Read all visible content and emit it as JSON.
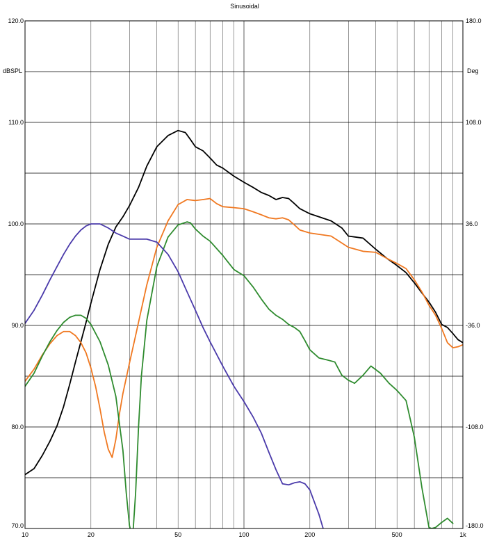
{
  "chart_data": {
    "type": "line",
    "title": "Sinusoidal",
    "xscale": "log",
    "xlim": [
      10,
      1000
    ],
    "ylim": [
      70,
      120
    ],
    "y2lim": [
      -180,
      180
    ],
    "ylabel": "dBSPL",
    "y2label": "Deg",
    "grid": true,
    "x_ticks": [
      {
        "value": 10,
        "label": "10"
      },
      {
        "value": 20,
        "label": "20"
      },
      {
        "value": 50,
        "label": "50"
      },
      {
        "value": 100,
        "label": "100"
      },
      {
        "value": 200,
        "label": "200"
      },
      {
        "value": 500,
        "label": "500"
      },
      {
        "value": 1000,
        "label": "1k"
      }
    ],
    "y_ticks": [
      {
        "value": 70,
        "label": "70.0"
      },
      {
        "value": 80,
        "label": "80.0"
      },
      {
        "value": 90,
        "label": "90.0"
      },
      {
        "value": 100,
        "label": "100.0"
      },
      {
        "value": 110,
        "label": "110.0"
      },
      {
        "value": 120,
        "label": "120.0"
      }
    ],
    "y2_ticks": [
      {
        "value": -180,
        "label": "-180.0"
      },
      {
        "value": -108,
        "label": "-108.0"
      },
      {
        "value": -36,
        "label": "-36.0"
      },
      {
        "value": 36,
        "label": "36.0"
      },
      {
        "value": 108,
        "label": "108.0"
      },
      {
        "value": 180,
        "label": "180.0"
      }
    ],
    "series": [
      {
        "color": "#000000",
        "x": [
          10,
          11,
          12,
          13,
          14,
          15,
          16,
          17,
          18,
          19,
          20,
          22,
          24,
          26,
          28,
          30,
          33,
          36,
          40,
          45,
          50,
          54,
          57,
          60,
          65,
          70,
          75,
          80,
          90,
          100,
          110,
          120,
          130,
          140,
          150,
          160,
          170,
          180,
          200,
          220,
          250,
          280,
          300,
          350,
          400,
          450,
          500,
          550,
          600,
          650,
          700,
          750,
          800,
          850,
          900,
          950,
          1000
        ],
        "y": [
          75.3,
          75.9,
          77.2,
          78.6,
          80.1,
          82.0,
          84.2,
          86.4,
          88.4,
          90.3,
          92.2,
          95.5,
          98.0,
          99.7,
          100.7,
          101.8,
          103.6,
          105.7,
          107.6,
          108.7,
          109.2,
          109.0,
          108.3,
          107.6,
          107.2,
          106.5,
          105.8,
          105.5,
          104.7,
          104.1,
          103.6,
          103.1,
          102.8,
          102.4,
          102.6,
          102.5,
          102.0,
          101.5,
          101.0,
          100.7,
          100.3,
          99.6,
          98.8,
          98.6,
          97.5,
          96.6,
          95.9,
          95.2,
          94.2,
          93.2,
          92.3,
          91.3,
          90.1,
          89.8,
          89.2,
          88.6,
          88.3
        ]
      },
      {
        "color": "#f07820",
        "x": [
          10,
          11,
          12,
          13,
          14,
          15,
          16,
          17,
          18,
          19,
          20,
          21,
          22,
          23,
          24,
          25,
          26,
          27,
          28,
          30,
          32,
          34,
          36,
          40,
          45,
          50,
          55,
          60,
          65,
          70,
          75,
          80,
          90,
          100,
          110,
          120,
          130,
          140,
          150,
          160,
          170,
          180,
          200,
          250,
          300,
          350,
          400,
          450,
          500,
          550,
          600,
          650,
          700,
          750,
          800,
          850,
          900,
          950,
          1000
        ],
        "y": [
          84.5,
          85.7,
          87.1,
          88.2,
          89.0,
          89.4,
          89.4,
          89.0,
          88.3,
          87.3,
          85.8,
          84.0,
          81.8,
          79.5,
          77.8,
          77.0,
          78.8,
          81.3,
          83.3,
          86.3,
          89.0,
          91.6,
          94.0,
          97.7,
          100.3,
          101.9,
          102.4,
          102.3,
          102.4,
          102.5,
          102.0,
          101.7,
          101.6,
          101.5,
          101.2,
          100.9,
          100.6,
          100.5,
          100.6,
          100.4,
          99.9,
          99.4,
          99.1,
          98.8,
          97.7,
          97.3,
          97.2,
          96.6,
          96.1,
          95.6,
          94.5,
          93.3,
          92.0,
          91.0,
          89.7,
          88.3,
          87.8,
          87.9,
          88.1
        ]
      },
      {
        "color": "#2e8b2e",
        "x": [
          10,
          11,
          12,
          13,
          14,
          15,
          16,
          17,
          18,
          19,
          20,
          22,
          24,
          26,
          28,
          29,
          30,
          31,
          32,
          33,
          34,
          36,
          40,
          45,
          50,
          55,
          57,
          60,
          65,
          70,
          80,
          90,
          100,
          110,
          120,
          130,
          140,
          150,
          160,
          170,
          180,
          190,
          200,
          220,
          240,
          260,
          280,
          300,
          320,
          350,
          380,
          420,
          460,
          500,
          550,
          600,
          650,
          700,
          720,
          750,
          800,
          850,
          900
        ],
        "y": [
          84.0,
          85.3,
          87.0,
          88.4,
          89.5,
          90.3,
          90.8,
          91.0,
          91.0,
          90.7,
          90.1,
          88.4,
          86.1,
          83.0,
          77.7,
          73.5,
          70.3,
          69.0,
          73.5,
          80.0,
          85.0,
          90.5,
          95.8,
          98.7,
          99.9,
          100.2,
          100.1,
          99.5,
          98.8,
          98.3,
          96.9,
          95.5,
          94.9,
          93.8,
          92.6,
          91.6,
          91.0,
          90.6,
          90.1,
          89.8,
          89.4,
          88.5,
          87.6,
          86.8,
          86.6,
          86.4,
          85.1,
          84.6,
          84.3,
          85.1,
          86.0,
          85.3,
          84.3,
          83.6,
          82.6,
          79.0,
          74.0,
          70.1,
          70.0,
          70.1,
          70.6,
          71.0,
          70.5
        ]
      },
      {
        "color": "#4a3aaa",
        "x": [
          10,
          11,
          12,
          13,
          14,
          15,
          16,
          17,
          18,
          19,
          20,
          22,
          24,
          26,
          28,
          30,
          33,
          36,
          40,
          45,
          50,
          55,
          60,
          65,
          70,
          80,
          90,
          100,
          110,
          120,
          130,
          140,
          150,
          160,
          170,
          180,
          190,
          200,
          220,
          230
        ],
        "y": [
          90.2,
          91.5,
          93.0,
          94.5,
          95.8,
          97.0,
          98.0,
          98.8,
          99.4,
          99.8,
          100.0,
          100.0,
          99.6,
          99.1,
          98.8,
          98.5,
          98.5,
          98.5,
          98.2,
          97.0,
          95.3,
          93.3,
          91.5,
          89.8,
          88.4,
          86.0,
          84.0,
          82.5,
          81.0,
          79.4,
          77.5,
          75.8,
          74.4,
          74.3,
          74.5,
          74.6,
          74.4,
          73.8,
          71.4,
          70.0
        ]
      }
    ]
  }
}
